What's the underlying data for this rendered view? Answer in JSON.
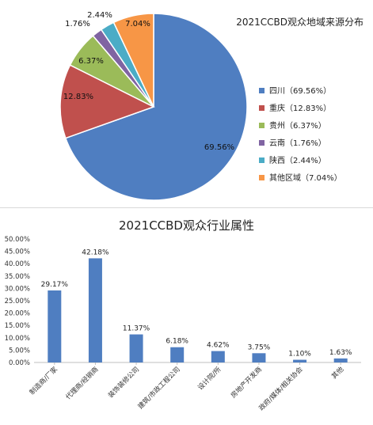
{
  "chart_data": [
    {
      "type": "pie",
      "title": "2021CCBD观众地域来源分布",
      "legend_position": "right",
      "slices": [
        {
          "label": "四川",
          "legend": "四川（69.56%）",
          "value": 69.56,
          "data_label": "69.56%",
          "color": "#4f7ec1"
        },
        {
          "label": "重庆",
          "legend": "重庆（12.83%）",
          "value": 12.83,
          "data_label": "12.83%",
          "color": "#c0504d"
        },
        {
          "label": "贵州",
          "legend": "贵州（6.37%）",
          "value": 6.37,
          "data_label": "6.37%",
          "color": "#9bbb59"
        },
        {
          "label": "云南",
          "legend": "云南（1.76%）",
          "value": 1.76,
          "data_label": "1.76%",
          "color": "#8064a2"
        },
        {
          "label": "陕西",
          "legend": "陕西（2.44%）",
          "value": 2.44,
          "data_label": "2.44%",
          "color": "#4bacc6"
        },
        {
          "label": "其他区域",
          "legend": "其他区域（7.04%）",
          "value": 7.04,
          "data_label": "7.04%",
          "color": "#f79646"
        }
      ]
    },
    {
      "type": "bar",
      "title": "2021CCBD观众行业属性",
      "categories": [
        "制造商/厂家",
        "代理商/经销商",
        "装饰装修公司",
        "建筑/市政工程公司",
        "设计院/所",
        "房地产开发商",
        "政府/媒体/相关协会",
        "其他"
      ],
      "values": [
        29.17,
        42.18,
        11.37,
        6.18,
        4.62,
        3.75,
        1.1,
        1.63
      ],
      "data_labels": [
        "29.17%",
        "42.18%",
        "11.37%",
        "6.18%",
        "4.62%",
        "3.75%",
        "1.10%",
        "1.63%"
      ],
      "ylim": [
        0,
        50
      ],
      "yticks": [
        "0.00%",
        "5.00%",
        "10.00%",
        "15.00%",
        "20.00%",
        "25.00%",
        "30.00%",
        "35.00%",
        "40.00%",
        "45.00%",
        "50.00%"
      ],
      "grid": false,
      "bar_color": "#4f7ec1",
      "xlabel": "",
      "ylabel": ""
    }
  ]
}
